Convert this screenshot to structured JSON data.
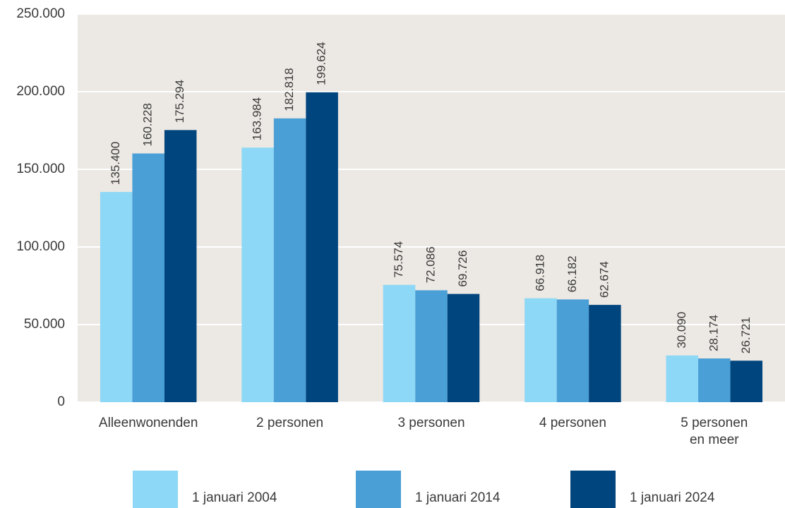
{
  "chart_data": {
    "type": "bar",
    "categories": [
      "Alleenwonenden",
      "2 personen",
      "3 personen",
      "4 personen",
      "5 personen\nen meer"
    ],
    "series": [
      {
        "name": "1 januari 2004",
        "color": "#8dd8f6",
        "values": [
          135400,
          163984,
          75574,
          66918,
          30090
        ],
        "value_labels": [
          "135.400",
          "163.984",
          "75.574",
          "66.918",
          "30.090"
        ]
      },
      {
        "name": "1 januari 2014",
        "color": "#4a9fd6",
        "values": [
          160228,
          182818,
          72086,
          66182,
          28174
        ],
        "value_labels": [
          "160.228",
          "182.818",
          "72.086",
          "66.182",
          "28.174"
        ]
      },
      {
        "name": "1 januari 2024",
        "color": "#00457e",
        "values": [
          175294,
          199624,
          69726,
          62674,
          26721
        ],
        "value_labels": [
          "175.294",
          "199.624",
          "69.726",
          "62.674",
          "26.721"
        ]
      }
    ],
    "ylim": [
      0,
      250000
    ],
    "yticks": [
      0,
      {
        "value": 50000,
        "label": "50.000"
      },
      {
        "value": 100000,
        "label": "100.000"
      },
      {
        "value": 150000,
        "label": "150.000"
      },
      {
        "value": 200000,
        "label": "200.000"
      },
      {
        "value": 250000,
        "label": "250.000"
      }
    ],
    "grid": true,
    "legend": "bottom"
  }
}
